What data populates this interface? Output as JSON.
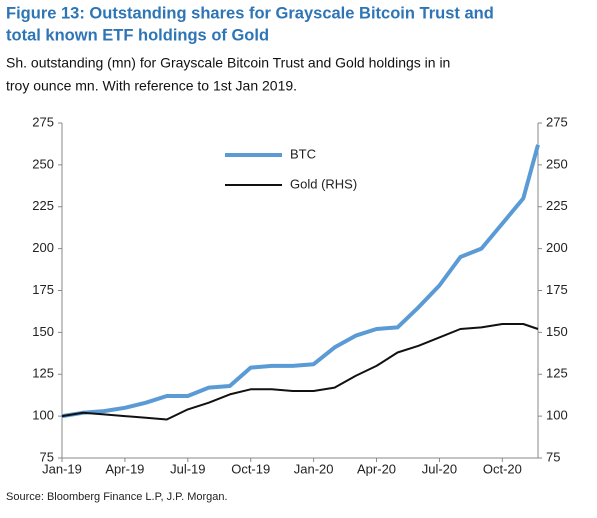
{
  "chart_data": {
    "type": "line",
    "title": [
      "Figure 13: Outstanding shares for Grayscale Bitcoin Trust and",
      "total known ETF holdings of Gold"
    ],
    "subtitle": [
      "Sh. outstanding (mn) for Grayscale Bitcoin Trust and Gold holdings in in",
      "troy ounce mn. With reference to 1st Jan 2019."
    ],
    "source": "Source: Bloomberg Finance L.P, J.P. Morgan.",
    "x": [
      0,
      1,
      2,
      3,
      4,
      5,
      6,
      7,
      8,
      9,
      10,
      11,
      12,
      13,
      14,
      15,
      16,
      17,
      18,
      19,
      20,
      21,
      22,
      22.7
    ],
    "xlim": [
      0,
      22.7
    ],
    "xticks": [
      {
        "value": 0,
        "label": "Jan-19"
      },
      {
        "value": 3,
        "label": "Apr-19"
      },
      {
        "value": 6,
        "label": "Jul-19"
      },
      {
        "value": 9,
        "label": "Oct-19"
      },
      {
        "value": 12,
        "label": "Jan-20"
      },
      {
        "value": 15,
        "label": "Apr-20"
      },
      {
        "value": 18,
        "label": "Jul-20"
      },
      {
        "value": 21,
        "label": "Oct-20"
      }
    ],
    "ylim": [
      75,
      275
    ],
    "yticks": [
      75,
      100,
      125,
      150,
      175,
      200,
      225,
      250,
      275
    ],
    "y2lim": [
      75,
      275
    ],
    "y2ticks": [
      75,
      100,
      125,
      150,
      175,
      200,
      225,
      250,
      275
    ],
    "series": [
      {
        "name": "BTC",
        "color": "#5b9bd5",
        "values": [
          100,
          102,
          103,
          105,
          108,
          112,
          112,
          117,
          118,
          129,
          130,
          130,
          131,
          141,
          148,
          152,
          153,
          165,
          178,
          195,
          200,
          215,
          230,
          262
        ]
      },
      {
        "name": "Gold (RHS)",
        "color": "#111111",
        "axis": "y2",
        "values": [
          100,
          102,
          101,
          100,
          99,
          98,
          104,
          108,
          113,
          116,
          116,
          115,
          115,
          117,
          124,
          130,
          138,
          142,
          147,
          152,
          153,
          155,
          155,
          152
        ]
      }
    ]
  }
}
